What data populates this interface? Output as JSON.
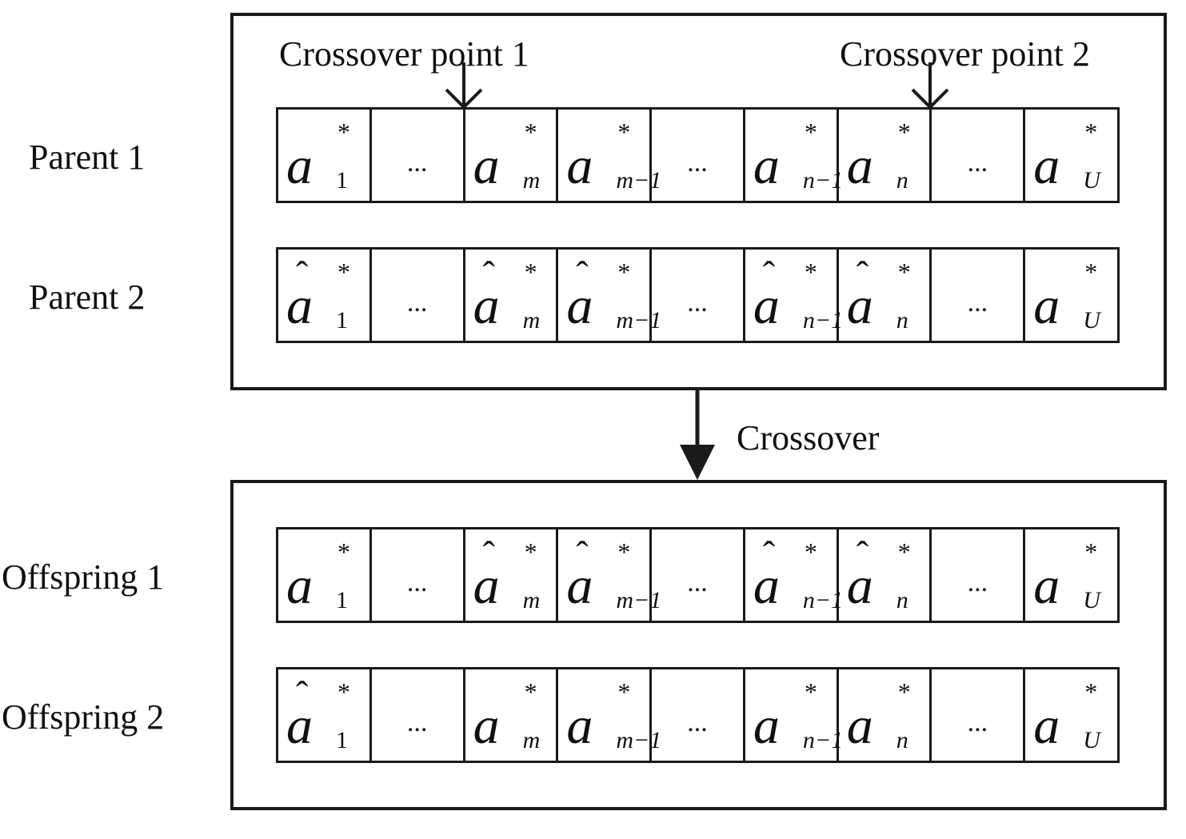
{
  "labels": {
    "crossover_point_1": "Crossover point 1",
    "crossover_point_2": "Crossover point 2",
    "crossover": "Crossover"
  },
  "rows": [
    {
      "label": "Parent 1",
      "cells": [
        {
          "base": "a",
          "hat": false,
          "star": "*",
          "sub": "1"
        },
        {
          "ellipsis": "..."
        },
        {
          "base": "a",
          "hat": false,
          "star": "*",
          "sub": "m"
        },
        {
          "base": "a",
          "hat": false,
          "star": "*",
          "sub": "m−1"
        },
        {
          "ellipsis": "..."
        },
        {
          "base": "a",
          "hat": false,
          "star": "*",
          "sub": "n−1"
        },
        {
          "base": "a",
          "hat": false,
          "star": "*",
          "sub": "n"
        },
        {
          "ellipsis": "..."
        },
        {
          "base": "a",
          "hat": false,
          "star": "*",
          "sub": "U"
        }
      ]
    },
    {
      "label": "Parent 2",
      "cells": [
        {
          "base": "a",
          "hat": true,
          "star": "*",
          "sub": "1"
        },
        {
          "ellipsis": "..."
        },
        {
          "base": "a",
          "hat": true,
          "star": "*",
          "sub": "m"
        },
        {
          "base": "a",
          "hat": true,
          "star": "*",
          "sub": "m−1"
        },
        {
          "ellipsis": "..."
        },
        {
          "base": "a",
          "hat": true,
          "star": "*",
          "sub": "n−1"
        },
        {
          "base": "a",
          "hat": true,
          "star": "*",
          "sub": "n"
        },
        {
          "ellipsis": "..."
        },
        {
          "base": "a",
          "hat": false,
          "star": "*",
          "sub": "U"
        }
      ]
    },
    {
      "label": "Offspring 1",
      "cells": [
        {
          "base": "a",
          "hat": false,
          "star": "*",
          "sub": "1"
        },
        {
          "ellipsis": "..."
        },
        {
          "base": "a",
          "hat": true,
          "star": "*",
          "sub": "m"
        },
        {
          "base": "a",
          "hat": true,
          "star": "*",
          "sub": "m−1"
        },
        {
          "ellipsis": "..."
        },
        {
          "base": "a",
          "hat": true,
          "star": "*",
          "sub": "n−1"
        },
        {
          "base": "a",
          "hat": true,
          "star": "*",
          "sub": "n"
        },
        {
          "ellipsis": "..."
        },
        {
          "base": "a",
          "hat": false,
          "star": "*",
          "sub": "U"
        }
      ]
    },
    {
      "label": "Offspring 2",
      "cells": [
        {
          "base": "a",
          "hat": true,
          "star": "*",
          "sub": "1"
        },
        {
          "ellipsis": "..."
        },
        {
          "base": "a",
          "hat": false,
          "star": "*",
          "sub": "m"
        },
        {
          "base": "a",
          "hat": false,
          "star": "*",
          "sub": "m−1"
        },
        {
          "ellipsis": "..."
        },
        {
          "base": "a",
          "hat": false,
          "star": "*",
          "sub": "n−1"
        },
        {
          "base": "a",
          "hat": false,
          "star": "*",
          "sub": "n"
        },
        {
          "ellipsis": "..."
        },
        {
          "base": "a",
          "hat": false,
          "star": "*",
          "sub": "U"
        }
      ]
    }
  ],
  "hat_glyph": "ˆ"
}
